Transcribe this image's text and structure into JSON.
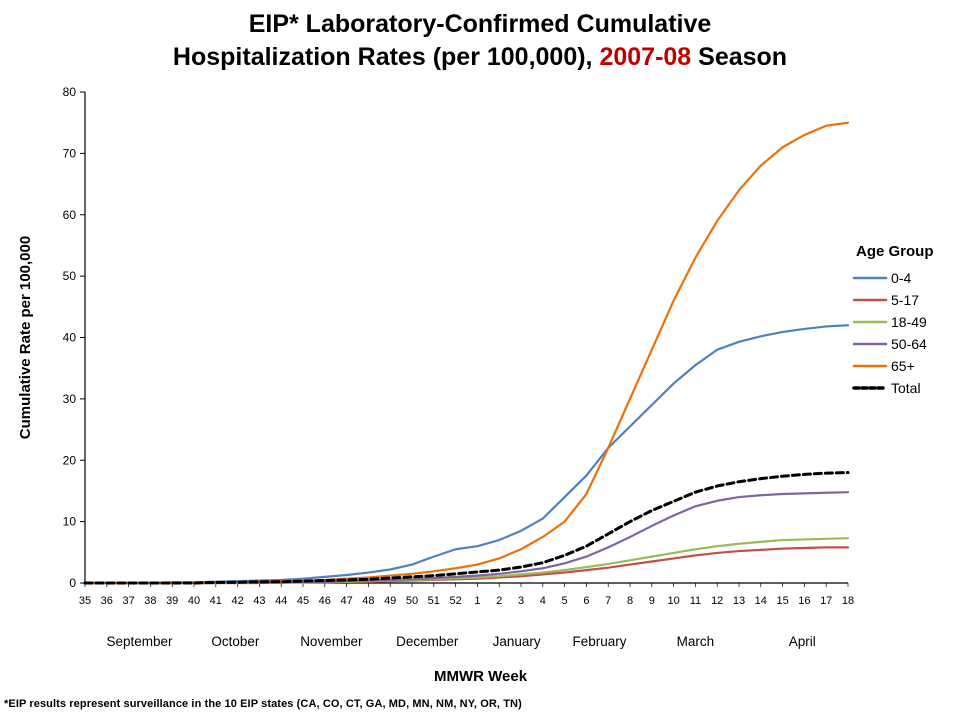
{
  "title": {
    "line1": "EIP* Laboratory-Confirmed Cumulative",
    "line2_prefix": "Hospitalization Rates (per 100,000), ",
    "line2_highlight": "2007-08",
    "line2_suffix": " Season",
    "highlight_color": "#C00000"
  },
  "footnote": "*EIP results represent surveillance in the 10 EIP states (CA, CO, CT, GA, MD, MN, NM, NY, OR, TN)",
  "chart_data": {
    "type": "line",
    "title": "EIP* Laboratory-Confirmed Cumulative Hospitalization Rates (per 100,000), 2007-08 Season",
    "xlabel": "MMWR Week",
    "ylabel": "Cumulative Rate per 100,000",
    "ylim": [
      0,
      80
    ],
    "ytick_step": 10,
    "grid": false,
    "legend_title": "Age Group",
    "legend_position": "right",
    "x": [
      "35",
      "36",
      "37",
      "38",
      "39",
      "40",
      "41",
      "42",
      "43",
      "44",
      "45",
      "46",
      "47",
      "48",
      "49",
      "50",
      "51",
      "52",
      "1",
      "2",
      "3",
      "4",
      "5",
      "6",
      "7",
      "8",
      "9",
      "10",
      "11",
      "12",
      "13",
      "14",
      "15",
      "16",
      "17",
      "18"
    ],
    "months": [
      {
        "label": "September",
        "index": 2.5
      },
      {
        "label": "October",
        "index": 6.9
      },
      {
        "label": "November",
        "index": 11.3
      },
      {
        "label": "December",
        "index": 15.7
      },
      {
        "label": "January",
        "index": 19.8
      },
      {
        "label": "February",
        "index": 23.6
      },
      {
        "label": "March",
        "index": 28.0
      },
      {
        "label": "April",
        "index": 32.9
      }
    ],
    "series": [
      {
        "name": "0-4",
        "color": "#4F81BD",
        "dash": null,
        "values": [
          0,
          0,
          0,
          0,
          0.1,
          0.1,
          0.2,
          0.3,
          0.4,
          0.5,
          0.7,
          1.0,
          1.3,
          1.7,
          2.2,
          3.0,
          4.3,
          5.5,
          6.0,
          7.0,
          8.5,
          10.5,
          14.0,
          17.5,
          22.0,
          25.5,
          29.0,
          32.5,
          35.5,
          38.0,
          39.3,
          40.2,
          40.9,
          41.4,
          41.8,
          42.0
        ]
      },
      {
        "name": "5-17",
        "color": "#C0504D",
        "dash": null,
        "values": [
          0,
          0,
          0,
          0,
          0,
          0,
          0,
          0,
          0,
          0.1,
          0.1,
          0.1,
          0.2,
          0.2,
          0.3,
          0.4,
          0.5,
          0.6,
          0.7,
          0.9,
          1.1,
          1.4,
          1.7,
          2.1,
          2.5,
          3.0,
          3.5,
          4.0,
          4.5,
          4.9,
          5.2,
          5.4,
          5.6,
          5.7,
          5.8,
          5.8
        ]
      },
      {
        "name": "18-49",
        "color": "#9BBB59",
        "dash": null,
        "values": [
          0,
          0,
          0,
          0,
          0,
          0,
          0,
          0,
          0.1,
          0.1,
          0.1,
          0.2,
          0.2,
          0.3,
          0.4,
          0.5,
          0.6,
          0.8,
          0.9,
          1.1,
          1.4,
          1.7,
          2.1,
          2.6,
          3.1,
          3.7,
          4.3,
          4.9,
          5.5,
          6.0,
          6.4,
          6.7,
          7.0,
          7.1,
          7.2,
          7.3
        ]
      },
      {
        "name": "50-64",
        "color": "#8064A2",
        "dash": null,
        "values": [
          0,
          0,
          0,
          0,
          0,
          0,
          0,
          0.1,
          0.1,
          0.1,
          0.2,
          0.2,
          0.3,
          0.4,
          0.5,
          0.6,
          0.8,
          1.0,
          1.2,
          1.5,
          1.9,
          2.4,
          3.2,
          4.3,
          5.8,
          7.5,
          9.3,
          11.0,
          12.5,
          13.4,
          14.0,
          14.3,
          14.5,
          14.6,
          14.7,
          14.8
        ]
      },
      {
        "name": "65+",
        "color": "#E8720C",
        "dash": null,
        "values": [
          0,
          0,
          0,
          0,
          0,
          0.1,
          0.1,
          0.1,
          0.2,
          0.3,
          0.4,
          0.5,
          0.7,
          0.9,
          1.2,
          1.5,
          1.9,
          2.4,
          3.0,
          4.0,
          5.5,
          7.5,
          10.0,
          14.5,
          22.0,
          30.0,
          38.0,
          46.0,
          53.0,
          59.0,
          64.0,
          68.0,
          71.0,
          73.0,
          74.5,
          75.0
        ]
      },
      {
        "name": "Total",
        "color": "#000000",
        "dash": "7 4",
        "values": [
          0,
          0,
          0,
          0,
          0,
          0,
          0.1,
          0.1,
          0.2,
          0.2,
          0.3,
          0.4,
          0.5,
          0.6,
          0.8,
          1.0,
          1.2,
          1.5,
          1.8,
          2.1,
          2.6,
          3.3,
          4.5,
          6.0,
          8.0,
          10.0,
          11.8,
          13.3,
          14.8,
          15.8,
          16.5,
          17.0,
          17.4,
          17.7,
          17.9,
          18.0
        ]
      }
    ]
  }
}
